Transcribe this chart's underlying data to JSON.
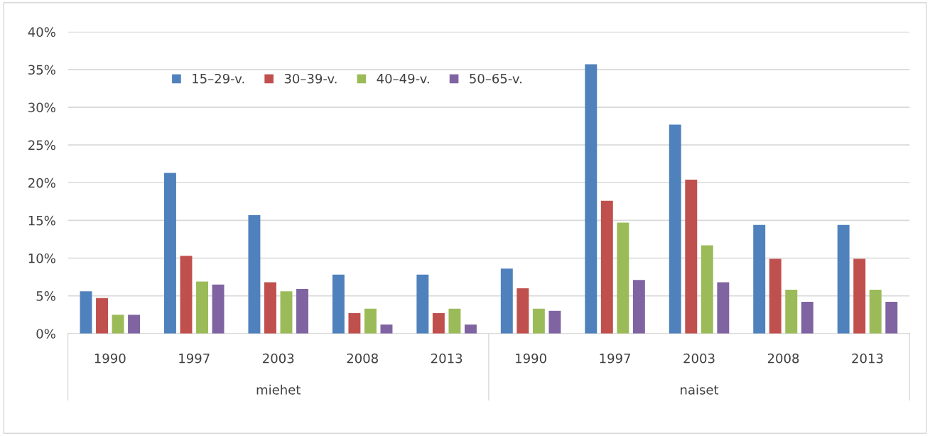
{
  "chart_data": {
    "type": "bar",
    "categories": [
      "1990",
      "1997",
      "2003",
      "2008",
      "2013",
      "1990",
      "1997",
      "2003",
      "2008",
      "2013"
    ],
    "series": [
      {
        "name": "15–29-v.",
        "color": "#4f81bd",
        "values": [
          5.6,
          21.3,
          15.7,
          7.8,
          7.8,
          8.6,
          35.7,
          27.7,
          14.4,
          14.4
        ]
      },
      {
        "name": "30–39-v.",
        "color": "#c0504d",
        "values": [
          4.7,
          10.3,
          6.8,
          2.7,
          2.7,
          6.0,
          17.6,
          20.4,
          9.9,
          9.9
        ]
      },
      {
        "name": "40–49-v.",
        "color": "#9bbb59",
        "values": [
          2.5,
          6.9,
          5.6,
          3.3,
          3.3,
          3.3,
          14.7,
          11.7,
          5.8,
          5.8
        ]
      },
      {
        "name": "50–65-v.",
        "color": "#8064a2",
        "values": [
          2.5,
          6.5,
          5.9,
          1.2,
          1.2,
          3.0,
          7.1,
          6.8,
          4.2,
          4.2
        ]
      }
    ],
    "annotations": [
      "miehet",
      "naiset"
    ],
    "ylim": [
      0,
      40
    ],
    "yticks": [
      {
        "value": 0,
        "label": "0%"
      },
      {
        "value": 5,
        "label": "5%"
      },
      {
        "value": 10,
        "label": "10%"
      },
      {
        "value": 15,
        "label": "15%"
      },
      {
        "value": 20,
        "label": "20%"
      },
      {
        "value": 25,
        "label": "25%"
      },
      {
        "value": 30,
        "label": "30%"
      },
      {
        "value": 35,
        "label": "35%"
      },
      {
        "value": 40,
        "label": "40%"
      }
    ],
    "grid": "y",
    "legend": "top left"
  }
}
